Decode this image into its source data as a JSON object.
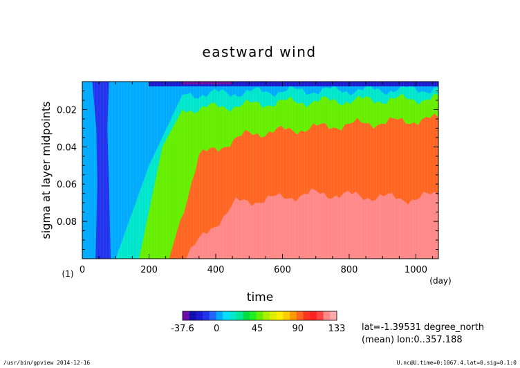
{
  "chart_data": {
    "type": "heatmap",
    "title": "eastward wind",
    "xlabel": "time",
    "ylabel": "sigma at layer midpoints",
    "x_unit": "(day)",
    "y_unit": "(1)",
    "xlim": [
      0,
      1067.4
    ],
    "ylim": [
      0.1,
      0.005
    ],
    "x_ticks": [
      "0",
      "200",
      "400",
      "600",
      "800",
      "1000"
    ],
    "y_ticks": [
      "0.02",
      "0.04",
      "0.06",
      "0.08"
    ],
    "grid": false,
    "colorbar": {
      "levels": [
        -37.6,
        -30,
        -22.5,
        -15,
        -7.5,
        0,
        7.5,
        15,
        22.5,
        30,
        37.5,
        45,
        52.5,
        60,
        67.5,
        75,
        82.5,
        90,
        97.5,
        105,
        112.5,
        120,
        127.5,
        133
      ],
      "colors": [
        "#6a0dab",
        "#1010b0",
        "#1a1ad0",
        "#2233ee",
        "#2266ff",
        "#00aaff",
        "#00ddff",
        "#00e6cc",
        "#00e699",
        "#00dd44",
        "#22ee22",
        "#66ee00",
        "#aaee00",
        "#ddee00",
        "#ffee00",
        "#ffcc00",
        "#ff9900",
        "#ff6622",
        "#ff3322",
        "#ff2222",
        "#ff4444",
        "#ff8888",
        "#ffaaaa"
      ],
      "tick_labels": [
        "-37.6",
        "0",
        "45",
        "90",
        "133"
      ]
    },
    "contours": [
      {
        "value": 0,
        "sigma": [
          [
            0,
            0.007
          ],
          [
            200,
            0.007
          ],
          [
            300,
            0.007
          ],
          [
            600,
            0.007
          ],
          [
            1067,
            0.007
          ]
        ]
      },
      {
        "value": 15,
        "sigma": [
          [
            100,
            0.1
          ],
          [
            200,
            0.05
          ],
          [
            300,
            0.012
          ],
          [
            600,
            0.01
          ],
          [
            1067,
            0.009
          ]
        ]
      },
      {
        "value": 45,
        "sigma": [
          [
            170,
            0.1
          ],
          [
            240,
            0.04
          ],
          [
            300,
            0.02
          ],
          [
            600,
            0.016
          ],
          [
            1067,
            0.014
          ]
        ]
      },
      {
        "value": 90,
        "sigma": [
          [
            260,
            0.1
          ],
          [
            350,
            0.045
          ],
          [
            500,
            0.033
          ],
          [
            800,
            0.028
          ],
          [
            1067,
            0.025
          ]
        ]
      },
      {
        "value": 120,
        "sigma": [
          [
            300,
            0.1
          ],
          [
            460,
            0.07
          ],
          [
            700,
            0.065
          ],
          [
            1000,
            0.068
          ],
          [
            1067,
            0.065
          ]
        ]
      }
    ],
    "annotations": [
      "lat=-1.39531 degree_north",
      "(mean) lon:0..357.188"
    ]
  },
  "footer": {
    "left": "/usr/bin/gpview  2014-12-16",
    "right": "U.nc@U,time=0:1067.4,lat=0,sig=0.1:0"
  }
}
